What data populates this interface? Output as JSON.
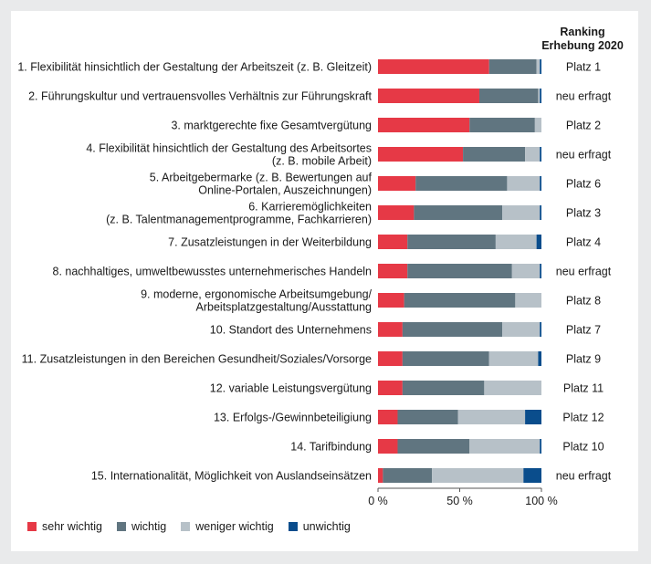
{
  "chart_data": {
    "type": "bar",
    "orientation": "horizontal",
    "stacked": true,
    "categories": [
      [
        "1. Flexibilität hinsichtlich der Gestaltung der Arbeitszeit (z. B. Gleitzeit)"
      ],
      [
        "2. Führungskultur und vertrauensvolles Verhältnis zur Führungskraft"
      ],
      [
        "3. marktgerechte fixe Gesamtvergütung"
      ],
      [
        "4. Flexibilität hinsichtlich der Gestaltung des Arbeitsortes",
        "(z. B. mobile Arbeit)"
      ],
      [
        "5. Arbeitgebermarke (z. B. Bewertungen auf",
        "Online-Portalen, Auszeichnungen)"
      ],
      [
        "6. Karrieremöglichkeiten",
        "(z. B. Talentmanagementprogramme, Fachkarrieren)"
      ],
      [
        "7. Zusatzleistungen in der Weiterbildung"
      ],
      [
        "8. nachhaltiges, umweltbewusstes unternehmerisches Handeln"
      ],
      [
        "9. moderne, ergonomische Arbeitsumgebung/",
        "Arbeitsplatzgestaltung/Ausstattung"
      ],
      [
        "10. Standort des Unternehmens"
      ],
      [
        "11. Zusatzleistungen in den Bereichen Gesundheit/Soziales/Vorsorge"
      ],
      [
        "12. variable Leistungsvergütung"
      ],
      [
        "13. Erfolgs-/Gewinnbeteiligiung"
      ],
      [
        "14. Tarifbindung"
      ],
      [
        "15. Internationalität, Möglichkeit von Auslandseinsätzen"
      ]
    ],
    "series": [
      {
        "name": "sehr wichtig",
        "color": "#e63946",
        "values": [
          68,
          62,
          56,
          52,
          23,
          22,
          18,
          18,
          16,
          15,
          15,
          15,
          12,
          12,
          3
        ]
      },
      {
        "name": "wichtig",
        "color": "#607580",
        "values": [
          29,
          36,
          40,
          38,
          56,
          54,
          54,
          64,
          68,
          61,
          53,
          50,
          37,
          44,
          30
        ]
      },
      {
        "name": "weniger wichtig",
        "color": "#b7c1c8",
        "values": [
          2,
          1,
          4,
          9,
          20,
          23,
          25,
          17,
          16,
          23,
          30,
          35,
          41,
          43,
          56
        ]
      },
      {
        "name": "unwichtig",
        "color": "#0a4d8c",
        "values": [
          1,
          1,
          0,
          1,
          1,
          1,
          3,
          1,
          0,
          1,
          2,
          0,
          10,
          1,
          11
        ]
      }
    ],
    "x_ticks": [
      "0 %",
      "50 %",
      "100 %"
    ],
    "xlim": [
      0,
      100
    ],
    "ranking": {
      "header": [
        "Ranking",
        "Erhebung 2020"
      ],
      "values": [
        "Platz 1",
        "neu erfragt",
        "Platz 2",
        "neu erfragt",
        "Platz 6",
        "Platz 3",
        "Platz 4",
        "neu erfragt",
        "Platz 8",
        "Platz 7",
        "Platz 9",
        "Platz 11",
        "Platz 12",
        "Platz 10",
        "neu erfragt"
      ]
    },
    "legend_position": "bottom-left",
    "grid": false
  }
}
